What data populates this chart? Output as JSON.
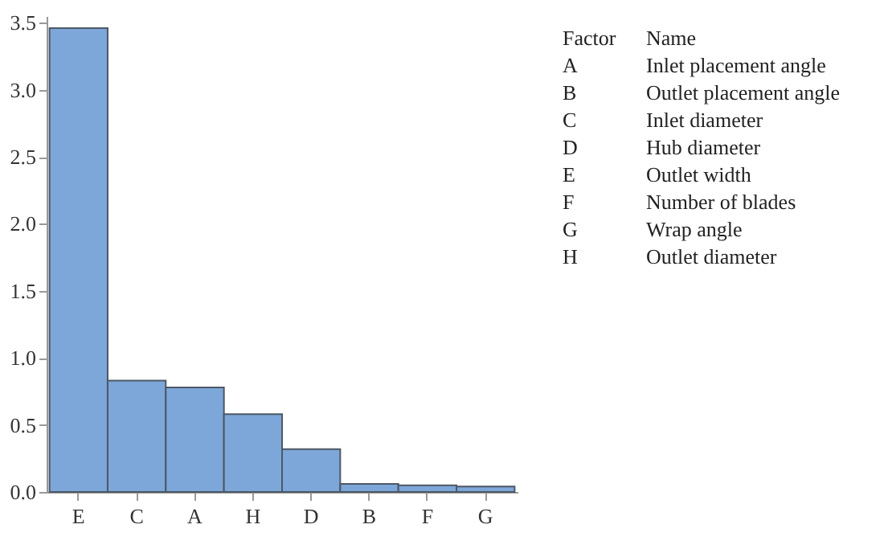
{
  "chart_data": {
    "type": "bar",
    "categories": [
      "E",
      "C",
      "A",
      "H",
      "D",
      "B",
      "F",
      "G"
    ],
    "values": [
      3.46,
      0.83,
      0.78,
      0.58,
      0.32,
      0.06,
      0.05,
      0.04
    ],
    "color": "#7da7d9",
    "ylim": [
      0,
      3.55
    ],
    "yticks": [
      {
        "value": 0,
        "label": "0.0"
      },
      {
        "value": 0.5,
        "label": "0.5"
      },
      {
        "value": 1,
        "label": "1.0"
      },
      {
        "value": 1.5,
        "label": "1.5"
      },
      {
        "value": 2,
        "label": "2.0"
      },
      {
        "value": 2.5,
        "label": "2.5"
      },
      {
        "value": 3,
        "label": "3.0"
      },
      {
        "value": 3.5,
        "label": "3.5"
      }
    ],
    "grid": false,
    "annotations": [
      "Factor",
      "Name",
      "A",
      "Inlet placement angle",
      "B",
      "Outlet placement angle",
      "C",
      "Inlet diameter",
      "D",
      "Hub diameter",
      "E",
      "Outlet width",
      "F",
      "Number of blades",
      "G",
      "Wrap angle",
      "H",
      "Outlet diameter"
    ]
  }
}
